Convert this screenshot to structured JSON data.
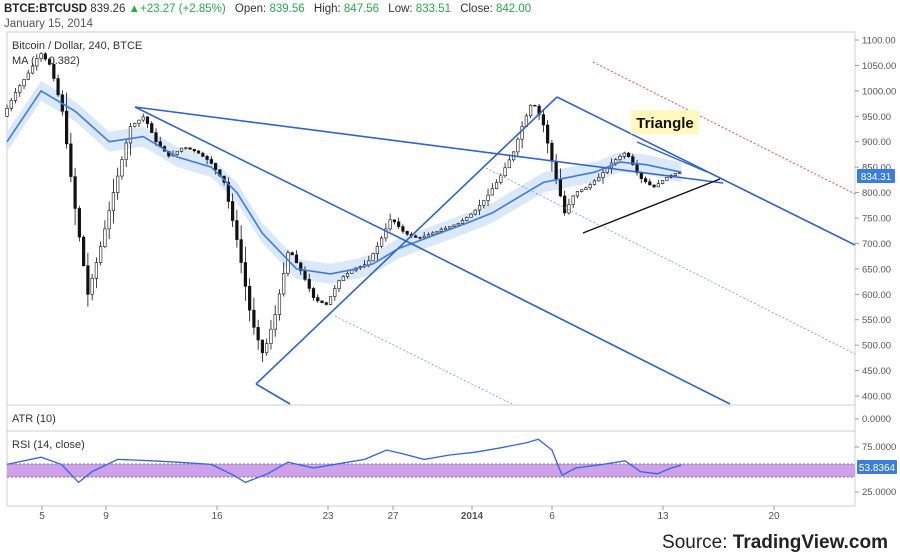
{
  "header": {
    "symbol": "BTCE:BTCUSD",
    "last": "839.26",
    "change": "+23.27 (+2.85%)",
    "open_label": "Open:",
    "open": "839.56",
    "high_label": "High:",
    "high": "847.56",
    "low_label": "Low:",
    "low": "833.51",
    "close_label": "Close:",
    "close": "842.00",
    "date": "January 15, 2014"
  },
  "main_pane": {
    "title": "Bitcoin / Dollar, 240, BTCE",
    "ma_label": "MA (",
    "ma_value": "0.382)",
    "annotation": "Triangle",
    "price_tag": "834.31",
    "y_ticks": [
      "1100.00",
      "1050.00",
      "1000.00",
      "950.00",
      "900.00",
      "850.00",
      "800.00",
      "750.00",
      "700.00",
      "650.00",
      "600.00",
      "550.00",
      "500.00",
      "450.00",
      "400.00"
    ]
  },
  "atr_pane": {
    "label": "ATR (10)",
    "tick": "0.0000"
  },
  "rsi_pane": {
    "label": "RSI (14, close)",
    "ticks": [
      "75.0000",
      "25.0000"
    ],
    "value_tag": "53.8364"
  },
  "x_axis": {
    "ticks": [
      "5",
      "9",
      "16",
      "23",
      "27",
      "2014",
      "6",
      "13",
      "20"
    ]
  },
  "source": {
    "prefix": "Source: ",
    "brand": "TradingView.com"
  },
  "colors": {
    "candle": "#111111",
    "ma": "#3b7ddd",
    "band": "#cfe0f7",
    "channel": "#2f65c6",
    "red": "#e84a4a",
    "rsi": "#3366dd",
    "rsi_band": "#c890e8",
    "up": "#2ba84a"
  },
  "chart_data": {
    "type": "candlestick",
    "title": "Bitcoin / Dollar, 240, BTCE",
    "x_tick_labels": [
      "5",
      "9",
      "16",
      "23",
      "27",
      "2014",
      "6",
      "13",
      "20"
    ],
    "ylim": [
      400,
      1100
    ],
    "price_path": [
      [
        0,
        950
      ],
      [
        0.8,
        1000
      ],
      [
        1.6,
        1040
      ],
      [
        2.2,
        1075
      ],
      [
        2.8,
        1050
      ],
      [
        3.5,
        960
      ],
      [
        4.2,
        780
      ],
      [
        5.0,
        600
      ],
      [
        5.8,
        700
      ],
      [
        6.5,
        800
      ],
      [
        7.5,
        930
      ],
      [
        8.3,
        950
      ],
      [
        9.0,
        900
      ],
      [
        9.8,
        870
      ],
      [
        10.6,
        890
      ],
      [
        11.4,
        880
      ],
      [
        12.2,
        860
      ],
      [
        13.0,
        820
      ],
      [
        13.8,
        700
      ],
      [
        14.6,
        550
      ],
      [
        15.3,
        480
      ],
      [
        16.0,
        560
      ],
      [
        16.8,
        690
      ],
      [
        17.6,
        640
      ],
      [
        18.3,
        590
      ],
      [
        19.0,
        580
      ],
      [
        19.8,
        630
      ],
      [
        20.6,
        650
      ],
      [
        21.4,
        660
      ],
      [
        22.1,
        700
      ],
      [
        22.8,
        750
      ],
      [
        23.6,
        720
      ],
      [
        24.4,
        710
      ],
      [
        25.2,
        720
      ],
      [
        26.0,
        730
      ],
      [
        26.8,
        740
      ],
      [
        27.6,
        760
      ],
      [
        28.4,
        790
      ],
      [
        29.2,
        830
      ],
      [
        30.0,
        880
      ],
      [
        30.5,
        930
      ],
      [
        31.1,
        980
      ],
      [
        31.7,
        940
      ],
      [
        32.4,
        840
      ],
      [
        33.0,
        760
      ],
      [
        33.6,
        800
      ],
      [
        34.3,
        810
      ],
      [
        35.0,
        830
      ],
      [
        35.8,
        860
      ],
      [
        36.6,
        880
      ],
      [
        37.4,
        830
      ],
      [
        38.2,
        810
      ],
      [
        39.0,
        830
      ],
      [
        39.6,
        839
      ]
    ],
    "ma": [
      [
        0,
        900
      ],
      [
        2,
        1000
      ],
      [
        4,
        960
      ],
      [
        6,
        900
      ],
      [
        8,
        910
      ],
      [
        10,
        870
      ],
      [
        12,
        850
      ],
      [
        13.5,
        800
      ],
      [
        15,
        720
      ],
      [
        17,
        650
      ],
      [
        19,
        640
      ],
      [
        20.5,
        650
      ],
      [
        21.5,
        660
      ],
      [
        23,
        690
      ],
      [
        25,
        715
      ],
      [
        27,
        740
      ],
      [
        28.5,
        760
      ],
      [
        30,
        790
      ],
      [
        31.5,
        820
      ],
      [
        33,
        830
      ],
      [
        34.5,
        840
      ],
      [
        36,
        860
      ],
      [
        37.5,
        855
      ],
      [
        39.6,
        840
      ]
    ],
    "rsi": [
      [
        0,
        55
      ],
      [
        2,
        65
      ],
      [
        3.2,
        55
      ],
      [
        4.2,
        30
      ],
      [
        5.0,
        45
      ],
      [
        6.5,
        62
      ],
      [
        8.5,
        60
      ],
      [
        10,
        58
      ],
      [
        12,
        55
      ],
      [
        13.3,
        40
      ],
      [
        14.0,
        30
      ],
      [
        15.3,
        42
      ],
      [
        16.5,
        58
      ],
      [
        18,
        50
      ],
      [
        19.5,
        56
      ],
      [
        21,
        62
      ],
      [
        22.3,
        75
      ],
      [
        23.2,
        70
      ],
      [
        24.5,
        62
      ],
      [
        26,
        68
      ],
      [
        27.5,
        72
      ],
      [
        29,
        78
      ],
      [
        30.5,
        85
      ],
      [
        31.2,
        90
      ],
      [
        32.0,
        75
      ],
      [
        32.6,
        40
      ],
      [
        33.4,
        50
      ],
      [
        35.0,
        55
      ],
      [
        36.3,
        60
      ],
      [
        37.2,
        45
      ],
      [
        38.2,
        42
      ],
      [
        39.0,
        50
      ],
      [
        39.6,
        54
      ]
    ],
    "rsi_range": [
      30,
      70
    ],
    "rsi_last": 53.8364,
    "last_price": 834.31
  }
}
